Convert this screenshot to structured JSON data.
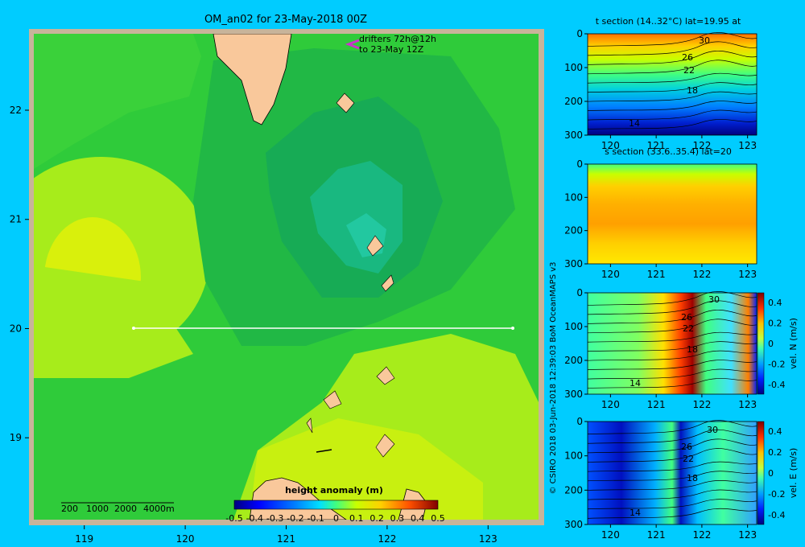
{
  "title": "OM_an02 for 23-May-2018 00Z",
  "drifters": {
    "line1": "drifters 72h@12h",
    "line2": "to 23-May 12Z",
    "color": "#cc33cc"
  },
  "depth_legend": {
    "labels": [
      "200",
      "1000",
      "2000",
      "4000m"
    ]
  },
  "credit": "© CSIRO 2018   03-Jun-2018 12:39:03 BoM OceanMAPS v3",
  "colorbar": {
    "title": "height anomaly  (m)",
    "ticks": [
      "-0.5",
      "-0.4",
      "-0.3",
      "-0.2",
      "-0.1",
      "0",
      "0.1",
      "0.2",
      "0.3",
      "0.4",
      "0.5"
    ]
  },
  "colors": {
    "background": "#00ccff",
    "land": "#f9c89b",
    "frame": "#c8b49a",
    "section_line": "#ffffff"
  },
  "chart_data": [
    {
      "type": "heatmap",
      "title": "OM_an02 for 23-May-2018 00Z",
      "quantity": "height anomaly (m)",
      "xlim": [
        118.5,
        123.5
      ],
      "ylim": [
        18.25,
        22.7
      ],
      "x_ticks": [
        "119",
        "120",
        "121",
        "122",
        "123"
      ],
      "y_ticks": [
        "19",
        "20",
        "21",
        "22"
      ],
      "clim": [
        -0.5,
        0.5
      ],
      "section_line": {
        "lon": [
          119.5,
          123.2
        ],
        "lat": [
          20,
          20
        ]
      },
      "contours": [
        {
          "cx": 121.55,
          "cy": 21.9,
          "rx": 1.6,
          "ry": 1.5,
          "value": 0.1,
          "note": "eddy outer ring"
        },
        {
          "cx": 121.55,
          "cy": 20.95,
          "rx": 1.25,
          "ry": 1.3,
          "value": 0.08
        },
        {
          "cx": 121.55,
          "cy": 20.95,
          "rx": 0.8,
          "ry": 0.85,
          "value": 0.05
        },
        {
          "cx": 121.65,
          "cy": 20.85,
          "rx": 0.45,
          "ry": 0.5,
          "value": 0.02
        },
        {
          "cx": 119.15,
          "cy": 20.45,
          "rx": 0.9,
          "ry": 1.15,
          "value": 0.22
        },
        {
          "cx": 119.2,
          "cy": 20.5,
          "rx": 0.45,
          "ry": 0.65,
          "value": 0.26
        }
      ]
    },
    {
      "type": "heatmap",
      "title": "t section (14..32°C) lat=19.95 at",
      "x_ticks": [
        "120",
        "121",
        "122",
        "123"
      ],
      "y_ticks": [
        "0",
        "100",
        "200",
        "300"
      ],
      "xlim": [
        119.5,
        123.2
      ],
      "ylim": [
        300,
        0
      ],
      "contour_labels": [
        "30",
        "26",
        "22",
        "18",
        "14"
      ]
    },
    {
      "type": "heatmap",
      "title": "s section (33.6..35.4) lat=20",
      "x_ticks": [
        "120",
        "121",
        "122",
        "123"
      ],
      "y_ticks": [
        "0",
        "100",
        "200",
        "300"
      ],
      "xlim": [
        119.5,
        123.2
      ],
      "ylim": [
        300,
        0
      ]
    },
    {
      "type": "heatmap",
      "title": "vel. N (m/s)",
      "x_ticks": [
        "120",
        "121",
        "122",
        "123"
      ],
      "y_ticks": [
        "0",
        "100",
        "200",
        "300"
      ],
      "xlim": [
        119.5,
        123.2
      ],
      "ylim": [
        300,
        0
      ],
      "clim": [
        -0.4,
        0.4
      ],
      "colorbar_ticks": [
        "0.4",
        "0.2",
        "0",
        "-0.2",
        "-0.4"
      ],
      "colorbar_label": "vel. N  (m/s)",
      "contour_labels": [
        "30",
        "26",
        "22",
        "18",
        "14"
      ]
    },
    {
      "type": "heatmap",
      "title": "vel. E (m/s)",
      "x_ticks": [
        "120",
        "121",
        "122",
        "123"
      ],
      "y_ticks": [
        "0",
        "100",
        "200",
        "300"
      ],
      "xlim": [
        119.5,
        123.2
      ],
      "ylim": [
        300,
        0
      ],
      "clim": [
        -0.4,
        0.4
      ],
      "colorbar_ticks": [
        "0.4",
        "0.2",
        "0",
        "-0.2",
        "-0.4"
      ],
      "colorbar_label": "vel. E  (m/s)",
      "contour_labels": [
        "30",
        "26",
        "22",
        "18",
        "14"
      ]
    }
  ]
}
